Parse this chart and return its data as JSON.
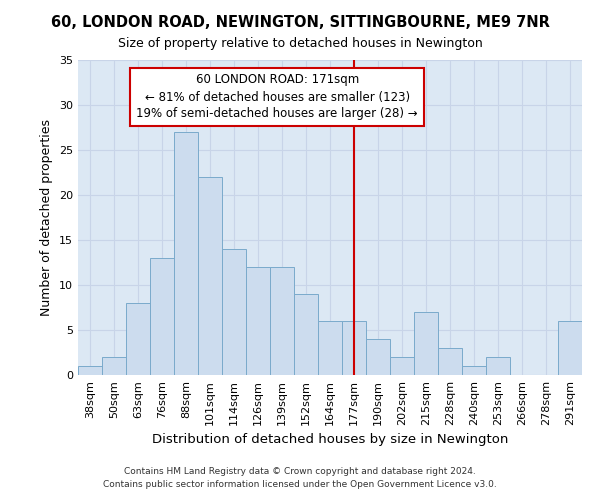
{
  "title": "60, LONDON ROAD, NEWINGTON, SITTINGBOURNE, ME9 7NR",
  "subtitle": "Size of property relative to detached houses in Newington",
  "xlabel": "Distribution of detached houses by size in Newington",
  "ylabel": "Number of detached properties",
  "categories": [
    "38sqm",
    "50sqm",
    "63sqm",
    "76sqm",
    "88sqm",
    "101sqm",
    "114sqm",
    "126sqm",
    "139sqm",
    "152sqm",
    "164sqm",
    "177sqm",
    "190sqm",
    "202sqm",
    "215sqm",
    "228sqm",
    "240sqm",
    "253sqm",
    "266sqm",
    "278sqm",
    "291sqm"
  ],
  "values": [
    1,
    2,
    8,
    13,
    27,
    22,
    14,
    12,
    12,
    9,
    6,
    6,
    4,
    2,
    7,
    3,
    1,
    2,
    0,
    0,
    6
  ],
  "bar_color": "#ccdcee",
  "bar_edgecolor": "#7aaacb",
  "property_line_x": 11.0,
  "annotation_text": "60 LONDON ROAD: 171sqm\n← 81% of detached houses are smaller (123)\n19% of semi-detached houses are larger (28) →",
  "annotation_box_color": "#ffffff",
  "annotation_box_edgecolor": "#cc0000",
  "vline_color": "#cc0000",
  "ylim": [
    0,
    35
  ],
  "yticks": [
    0,
    5,
    10,
    15,
    20,
    25,
    30,
    35
  ],
  "grid_color": "#c8d4e8",
  "bg_color": "#dce8f4",
  "fig_color": "#ffffff",
  "footnote1": "Contains HM Land Registry data © Crown copyright and database right 2024.",
  "footnote2": "Contains public sector information licensed under the Open Government Licence v3.0."
}
